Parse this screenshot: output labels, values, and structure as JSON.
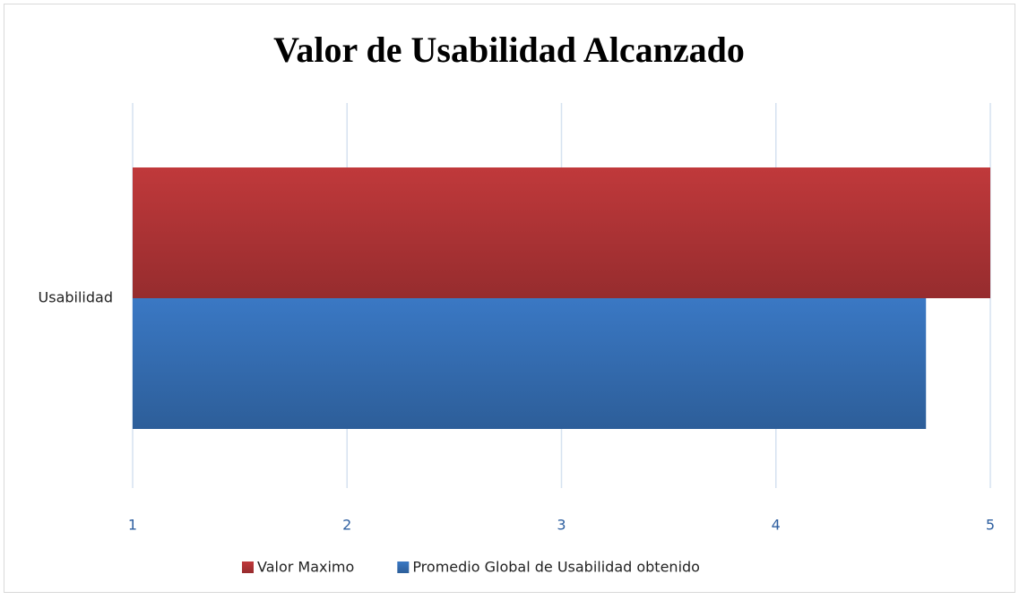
{
  "chart_data": {
    "type": "bar",
    "orientation": "horizontal",
    "title": "Valor de Usabilidad Alcanzado",
    "categories": [
      "Usabilidad"
    ],
    "series": [
      {
        "name": "Valor Maximo",
        "color": "#c0393b",
        "values": [
          5
        ]
      },
      {
        "name": "Promedio Global de Usabilidad obtenido",
        "color": "#3a78c4",
        "values": [
          4.7
        ]
      }
    ],
    "xlim": [
      1,
      5
    ],
    "xticks": [
      1,
      2,
      3,
      4,
      5
    ],
    "grid": true,
    "legend": "bottom"
  }
}
